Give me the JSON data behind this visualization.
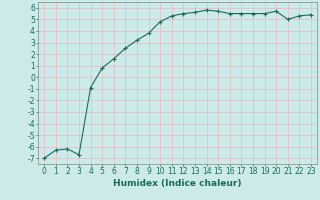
{
  "x": [
    0,
    1,
    2,
    3,
    4,
    5,
    6,
    7,
    8,
    9,
    10,
    11,
    12,
    13,
    14,
    15,
    16,
    17,
    18,
    19,
    20,
    21,
    22,
    23
  ],
  "y": [
    -7.0,
    -6.3,
    -6.2,
    -6.7,
    -0.9,
    0.8,
    1.6,
    2.5,
    3.2,
    3.8,
    4.8,
    5.3,
    5.5,
    5.6,
    5.8,
    5.7,
    5.5,
    5.5,
    5.5,
    5.5,
    5.7,
    5.0,
    5.3,
    5.4
  ],
  "line_color": "#1a6b5a",
  "marker": "+",
  "marker_size": 3,
  "background_color": "#cceae7",
  "grid_color": "#e8b8c0",
  "xlabel": "Humidex (Indice chaleur)",
  "xlim": [
    -0.5,
    23.5
  ],
  "ylim": [
    -7.5,
    6.5
  ],
  "xtick_labels": [
    "0",
    "1",
    "2",
    "3",
    "4",
    "5",
    "6",
    "7",
    "8",
    "9",
    "10",
    "11",
    "12",
    "13",
    "14",
    "15",
    "16",
    "17",
    "18",
    "19",
    "20",
    "21",
    "22",
    "23"
  ],
  "ytick_values": [
    -7,
    -6,
    -5,
    -4,
    -3,
    -2,
    -1,
    0,
    1,
    2,
    3,
    4,
    5,
    6
  ],
  "xlabel_color": "#1a6b5a",
  "tick_label_color": "#1a6b5a",
  "axis_color": "#888888",
  "font_size": 5.5,
  "xlabel_fontsize": 6.5
}
